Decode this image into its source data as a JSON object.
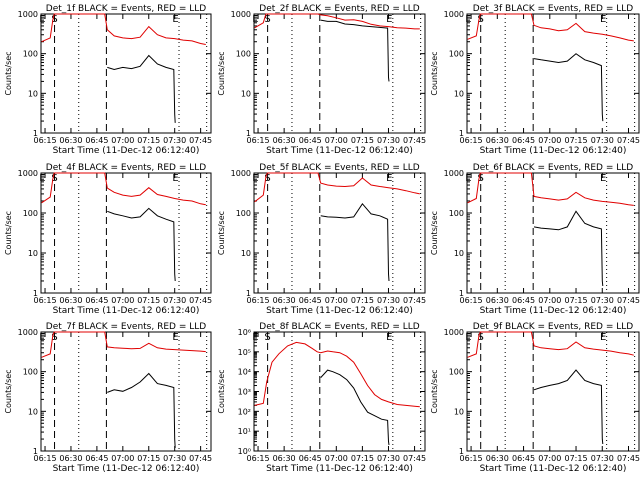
{
  "chart_data": {
    "type": "line",
    "xlabel": "Start Time (11-Dec-12 06:12:40)",
    "ylabel": "Counts/sec",
    "xticks": [
      "06:15",
      "06:30",
      "06:45",
      "07:00",
      "07:15",
      "07:30",
      "07:45"
    ],
    "xtick_minutes": [
      15,
      30,
      45,
      60,
      75,
      90,
      105
    ],
    "xlim_minutes": [
      12.67,
      111
    ],
    "series_legend": "BLACK = Events, RED = LLD",
    "markers": {
      "E1": 13.5,
      "S": 20.5,
      "E2": 90.5,
      "dashed": [
        20.5,
        50.5
      ],
      "dotted": [
        34.5,
        92.5,
        108.5
      ]
    },
    "panels": [
      {
        "title": "Det_1f BLACK = Events, RED = LLD",
        "ylim": [
          1,
          1000
        ],
        "yticks": [
          "1",
          "10",
          "100",
          "1000"
        ],
        "red": [
          [
            13,
            200
          ],
          [
            18,
            250
          ],
          [
            19.5,
            700
          ],
          [
            20.3,
            1000
          ],
          [
            49.5,
            1000
          ],
          [
            51,
            400
          ],
          [
            55,
            280
          ],
          [
            60,
            250
          ],
          [
            65,
            240
          ],
          [
            70,
            260
          ],
          [
            75,
            480
          ],
          [
            80,
            300
          ],
          [
            85,
            250
          ],
          [
            90,
            240
          ],
          [
            95,
            220
          ],
          [
            100,
            210
          ],
          [
            105,
            180
          ],
          [
            108,
            170
          ]
        ],
        "black": [
          [
            51,
            45
          ],
          [
            55,
            40
          ],
          [
            60,
            45
          ],
          [
            65,
            42
          ],
          [
            70,
            48
          ],
          [
            75,
            90
          ],
          [
            80,
            55
          ],
          [
            85,
            45
          ],
          [
            89.5,
            40
          ],
          [
            90,
            3
          ],
          [
            90.3,
            1.8
          ]
        ]
      },
      {
        "title": "Det_2f BLACK = Events, RED = LLD",
        "ylim": [
          1,
          1000
        ],
        "yticks": [
          "1",
          "10",
          "100",
          "1000"
        ],
        "red": [
          [
            13,
            450
          ],
          [
            18,
            600
          ],
          [
            19.5,
            1000
          ],
          [
            20.3,
            1000
          ],
          [
            49.5,
            1000
          ],
          [
            51,
            950
          ],
          [
            55,
            900
          ],
          [
            60,
            800
          ],
          [
            65,
            700
          ],
          [
            70,
            720
          ],
          [
            75,
            650
          ],
          [
            80,
            550
          ],
          [
            85,
            500
          ],
          [
            90,
            480
          ],
          [
            95,
            450
          ],
          [
            100,
            440
          ],
          [
            105,
            420
          ],
          [
            108,
            420
          ]
        ],
        "black": [
          [
            51,
            700
          ],
          [
            55,
            650
          ],
          [
            60,
            650
          ],
          [
            65,
            560
          ],
          [
            70,
            540
          ],
          [
            75,
            500
          ],
          [
            80,
            480
          ],
          [
            85,
            460
          ],
          [
            89.5,
            440
          ],
          [
            90,
            25
          ],
          [
            90.3,
            20
          ]
        ]
      },
      {
        "title": "Det_3f BLACK = Events, RED = LLD",
        "ylim": [
          1,
          1000
        ],
        "yticks": [
          "1",
          "10",
          "100",
          "1000"
        ],
        "red": [
          [
            13,
            230
          ],
          [
            18,
            280
          ],
          [
            19.5,
            700
          ],
          [
            20.3,
            1000
          ],
          [
            49.5,
            1000
          ],
          [
            51,
            520
          ],
          [
            55,
            450
          ],
          [
            60,
            420
          ],
          [
            65,
            380
          ],
          [
            70,
            400
          ],
          [
            75,
            580
          ],
          [
            80,
            360
          ],
          [
            85,
            330
          ],
          [
            90,
            310
          ],
          [
            95,
            280
          ],
          [
            100,
            250
          ],
          [
            105,
            220
          ],
          [
            108,
            210
          ]
        ],
        "black": [
          [
            51,
            75
          ],
          [
            55,
            70
          ],
          [
            60,
            65
          ],
          [
            65,
            60
          ],
          [
            70,
            65
          ],
          [
            75,
            100
          ],
          [
            80,
            70
          ],
          [
            85,
            60
          ],
          [
            89.5,
            50
          ],
          [
            90,
            3
          ],
          [
            90.3,
            2
          ]
        ]
      },
      {
        "title": "Det_4f BLACK = Events, RED = LLD",
        "ylim": [
          1,
          1000
        ],
        "yticks": [
          "1",
          "10",
          "100",
          "1000"
        ],
        "red": [
          [
            13,
            180
          ],
          [
            18,
            250
          ],
          [
            19.5,
            700
          ],
          [
            20.3,
            1000
          ],
          [
            49.5,
            1000
          ],
          [
            51,
            420
          ],
          [
            55,
            330
          ],
          [
            60,
            280
          ],
          [
            65,
            260
          ],
          [
            70,
            280
          ],
          [
            75,
            430
          ],
          [
            80,
            290
          ],
          [
            85,
            260
          ],
          [
            90,
            230
          ],
          [
            95,
            210
          ],
          [
            100,
            200
          ],
          [
            105,
            170
          ],
          [
            108,
            160
          ]
        ],
        "black": [
          [
            51,
            110
          ],
          [
            55,
            95
          ],
          [
            60,
            85
          ],
          [
            65,
            75
          ],
          [
            70,
            80
          ],
          [
            75,
            130
          ],
          [
            80,
            85
          ],
          [
            85,
            70
          ],
          [
            89.5,
            60
          ],
          [
            90,
            3
          ],
          [
            90.3,
            2
          ]
        ]
      },
      {
        "title": "Det_5f BLACK = Events, RED = LLD",
        "ylim": [
          1,
          1000
        ],
        "yticks": [
          "1",
          "10",
          "100",
          "1000"
        ],
        "red": [
          [
            13,
            190
          ],
          [
            18,
            280
          ],
          [
            19.5,
            800
          ],
          [
            20.3,
            1000
          ],
          [
            49.5,
            1000
          ],
          [
            51,
            560
          ],
          [
            55,
            500
          ],
          [
            60,
            470
          ],
          [
            65,
            460
          ],
          [
            70,
            480
          ],
          [
            75,
            750
          ],
          [
            80,
            500
          ],
          [
            85,
            460
          ],
          [
            90,
            430
          ],
          [
            95,
            400
          ],
          [
            100,
            360
          ],
          [
            105,
            320
          ],
          [
            108,
            300
          ]
        ],
        "black": [
          [
            51,
            85
          ],
          [
            55,
            80
          ],
          [
            60,
            78
          ],
          [
            65,
            75
          ],
          [
            70,
            80
          ],
          [
            75,
            170
          ],
          [
            80,
            95
          ],
          [
            85,
            85
          ],
          [
            89.5,
            70
          ],
          [
            90,
            3
          ],
          [
            90.3,
            2
          ]
        ]
      },
      {
        "title": "Det_6f BLACK = Events, RED = LLD",
        "ylim": [
          1,
          1000
        ],
        "yticks": [
          "1",
          "10",
          "100",
          "1000"
        ],
        "red": [
          [
            13,
            180
          ],
          [
            18,
            230
          ],
          [
            19.5,
            700
          ],
          [
            20.3,
            1000
          ],
          [
            49.5,
            1000
          ],
          [
            51,
            260
          ],
          [
            55,
            240
          ],
          [
            60,
            225
          ],
          [
            65,
            210
          ],
          [
            70,
            225
          ],
          [
            75,
            330
          ],
          [
            80,
            240
          ],
          [
            85,
            210
          ],
          [
            90,
            195
          ],
          [
            95,
            185
          ],
          [
            100,
            175
          ],
          [
            105,
            160
          ],
          [
            108,
            155
          ]
        ],
        "black": [
          [
            51,
            45
          ],
          [
            55,
            42
          ],
          [
            60,
            40
          ],
          [
            65,
            38
          ],
          [
            70,
            45
          ],
          [
            75,
            110
          ],
          [
            80,
            55
          ],
          [
            85,
            45
          ],
          [
            89.5,
            40
          ],
          [
            90,
            2
          ],
          [
            90.3,
            1.5
          ]
        ]
      },
      {
        "title": "Det_7f BLACK = Events, RED = LLD",
        "ylim": [
          1,
          1000
        ],
        "yticks": [
          "1",
          "10",
          "100",
          "1000"
        ],
        "red": [
          [
            13,
            230
          ],
          [
            18,
            280
          ],
          [
            19.5,
            800
          ],
          [
            20.3,
            1000
          ],
          [
            49.5,
            1000
          ],
          [
            51,
            420
          ],
          [
            55,
            400
          ],
          [
            60,
            390
          ],
          [
            65,
            380
          ],
          [
            70,
            385
          ],
          [
            75,
            520
          ],
          [
            80,
            400
          ],
          [
            85,
            370
          ],
          [
            90,
            360
          ],
          [
            95,
            350
          ],
          [
            100,
            340
          ],
          [
            105,
            330
          ],
          [
            108,
            320
          ]
        ],
        "black": [
          [
            51,
            30
          ],
          [
            55,
            35
          ],
          [
            60,
            32
          ],
          [
            65,
            40
          ],
          [
            70,
            55
          ],
          [
            75,
            90
          ],
          [
            80,
            50
          ],
          [
            85,
            45
          ],
          [
            89.5,
            40
          ],
          [
            90,
            2
          ],
          [
            90.3,
            1.2
          ]
        ]
      },
      {
        "title": "Det_8f BLACK = Events, RED = LLD",
        "ylim": [
          1,
          1000000
        ],
        "yticks": [
          "10⁰",
          "10¹",
          "10²",
          "10³",
          "10⁴",
          "10⁵",
          "10⁶"
        ],
        "red": [
          [
            13,
            200
          ],
          [
            18,
            250
          ],
          [
            20,
            3000
          ],
          [
            23,
            30000
          ],
          [
            27,
            80000
          ],
          [
            32,
            200000
          ],
          [
            37,
            300000
          ],
          [
            42,
            250000
          ],
          [
            46,
            150000
          ],
          [
            49,
            100000
          ],
          [
            51,
            90000
          ],
          [
            55,
            110000
          ],
          [
            58,
            100000
          ],
          [
            62,
            90000
          ],
          [
            66,
            60000
          ],
          [
            70,
            30000
          ],
          [
            74,
            8000
          ],
          [
            78,
            2000
          ],
          [
            82,
            700
          ],
          [
            86,
            400
          ],
          [
            90,
            300
          ],
          [
            95,
            220
          ],
          [
            100,
            200
          ],
          [
            105,
            180
          ],
          [
            108,
            170
          ]
        ],
        "black": [
          [
            51,
            5000
          ],
          [
            55,
            12000
          ],
          [
            58,
            10000
          ],
          [
            62,
            7000
          ],
          [
            66,
            4000
          ],
          [
            70,
            1500
          ],
          [
            74,
            300
          ],
          [
            78,
            90
          ],
          [
            82,
            60
          ],
          [
            86,
            40
          ],
          [
            89.5,
            35
          ],
          [
            90,
            3
          ],
          [
            90.3,
            2
          ]
        ]
      },
      {
        "title": "Det_9f BLACK = Events, RED = LLD",
        "ylim": [
          1,
          1000
        ],
        "yticks": [
          "1",
          "10",
          "100",
          "1000"
        ],
        "red": [
          [
            13,
            230
          ],
          [
            18,
            280
          ],
          [
            19.5,
            800
          ],
          [
            20.3,
            1000
          ],
          [
            49.5,
            1000
          ],
          [
            51,
            450
          ],
          [
            55,
            400
          ],
          [
            60,
            380
          ],
          [
            65,
            360
          ],
          [
            70,
            380
          ],
          [
            75,
            560
          ],
          [
            80,
            400
          ],
          [
            85,
            370
          ],
          [
            90,
            350
          ],
          [
            95,
            330
          ],
          [
            100,
            300
          ],
          [
            105,
            280
          ],
          [
            108,
            260
          ]
        ],
        "black": [
          [
            51,
            35
          ],
          [
            55,
            40
          ],
          [
            60,
            45
          ],
          [
            65,
            50
          ],
          [
            70,
            60
          ],
          [
            75,
            110
          ],
          [
            80,
            60
          ],
          [
            85,
            50
          ],
          [
            89.5,
            45
          ],
          [
            90,
            2
          ],
          [
            90.3,
            1.5
          ]
        ]
      }
    ]
  }
}
